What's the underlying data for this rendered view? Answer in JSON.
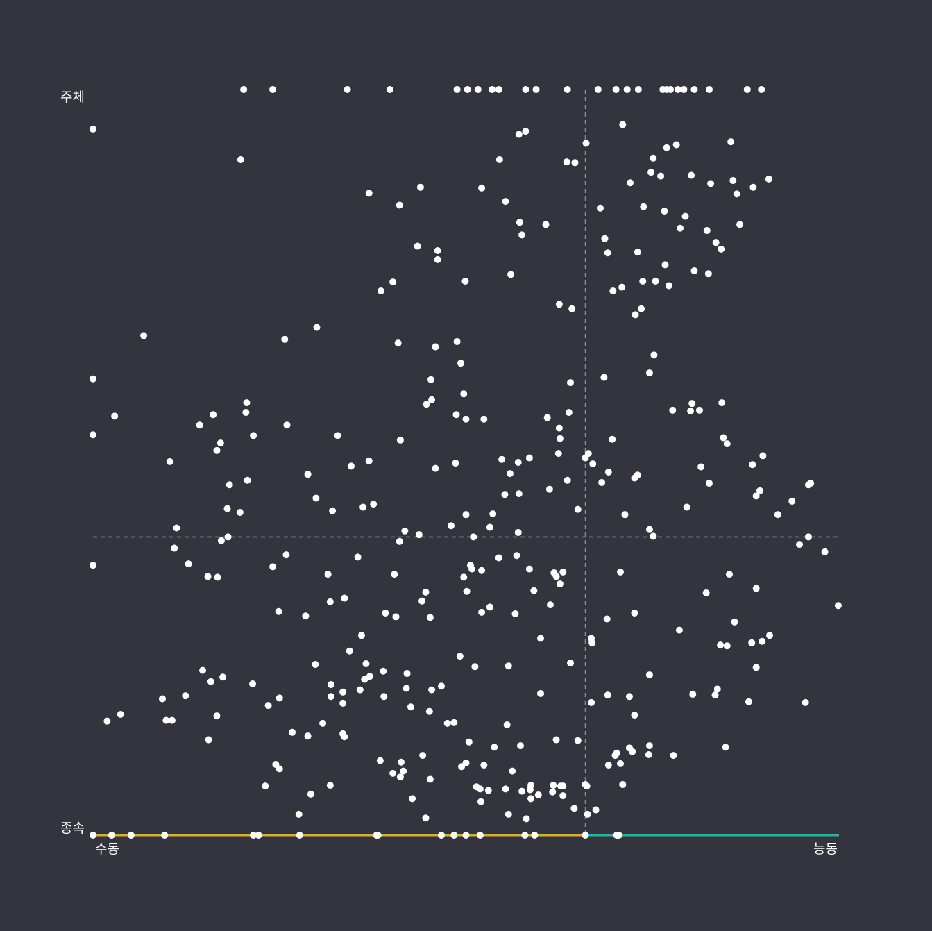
{
  "chart_data": {
    "type": "scatter",
    "title": "",
    "labels": {
      "y_top": "주체",
      "y_bottom": "종속",
      "x_left": "수동",
      "x_right": "능동"
    },
    "x_range": [
      0,
      1
    ],
    "y_range": [
      0,
      1
    ],
    "reference_lines": {
      "x": 0.66,
      "y": 0.4
    },
    "grid": false,
    "legend": "none",
    "colors": {
      "background": "#34343f",
      "point": "#ffffff",
      "reference_line": "#8a8a96",
      "y_axis_top": "#d6731e",
      "y_axis_bottom": "#5a59b5",
      "x_axis_left": "#d8ad35",
      "x_axis_right": "#2ab3a2"
    },
    "points": [
      [
        0.202,
        1.0
      ],
      [
        0.241,
        1.0
      ],
      [
        0.341,
        1.0
      ],
      [
        0.398,
        1.0
      ],
      [
        0.488,
        1.0
      ],
      [
        0.502,
        1.0
      ],
      [
        0.516,
        1.0
      ],
      [
        0.535,
        1.0
      ],
      [
        0.544,
        1.0
      ],
      [
        0.58,
        1.0
      ],
      [
        0.594,
        1.0
      ],
      [
        0.636,
        1.0
      ],
      [
        0.677,
        1.0
      ],
      [
        0.701,
        1.0
      ],
      [
        0.716,
        1.0
      ],
      [
        0.731,
        1.0
      ],
      [
        0.764,
        1.0
      ],
      [
        0.769,
        1.0
      ],
      [
        0.774,
        1.0
      ],
      [
        0.784,
        1.0
      ],
      [
        0.792,
        1.0
      ],
      [
        0.806,
        1.0
      ],
      [
        0.826,
        1.0
      ],
      [
        0.877,
        1.0
      ],
      [
        0.896,
        1.0
      ],
      [
        0.0,
        0.947
      ],
      [
        0.71,
        0.953
      ],
      [
        0.571,
        0.94
      ],
      [
        0.58,
        0.944
      ],
      [
        0.661,
        0.928
      ],
      [
        0.769,
        0.922
      ],
      [
        0.782,
        0.926
      ],
      [
        0.855,
        0.93
      ],
      [
        0.198,
        0.906
      ],
      [
        0.545,
        0.906
      ],
      [
        0.635,
        0.903
      ],
      [
        0.751,
        0.908
      ],
      [
        0.72,
        0.875
      ],
      [
        0.646,
        0.902
      ],
      [
        0.863,
        0.86
      ],
      [
        0.885,
        0.869
      ],
      [
        0.858,
        0.878
      ],
      [
        0.828,
        0.874
      ],
      [
        0.37,
        0.861
      ],
      [
        0.439,
        0.869
      ],
      [
        0.521,
        0.868
      ],
      [
        0.553,
        0.85
      ],
      [
        0.572,
        0.822
      ],
      [
        0.575,
        0.805
      ],
      [
        0.607,
        0.819
      ],
      [
        0.68,
        0.841
      ],
      [
        0.686,
        0.8
      ],
      [
        0.748,
        0.889
      ],
      [
        0.802,
        0.885
      ],
      [
        0.867,
        0.819
      ],
      [
        0.906,
        0.88
      ],
      [
        0.761,
        0.884
      ],
      [
        0.738,
        0.843
      ],
      [
        0.794,
        0.83
      ],
      [
        0.823,
        0.811
      ],
      [
        0.835,
        0.795
      ],
      [
        0.842,
        0.786
      ],
      [
        0.787,
        0.814
      ],
      [
        0.806,
        0.757
      ],
      [
        0.825,
        0.753
      ],
      [
        0.767,
        0.765
      ],
      [
        0.754,
        0.743
      ],
      [
        0.737,
        0.743
      ],
      [
        0.766,
        0.837
      ],
      [
        0.73,
        0.782
      ],
      [
        0.772,
        0.737
      ],
      [
        0.69,
        0.781
      ],
      [
        0.709,
        0.735
      ],
      [
        0.697,
        0.73
      ],
      [
        0.735,
        0.706
      ],
      [
        0.685,
        0.614
      ],
      [
        0.642,
        0.706
      ],
      [
        0.625,
        0.712
      ],
      [
        0.727,
        0.698
      ],
      [
        0.752,
        0.644
      ],
      [
        0.746,
        0.62
      ],
      [
        0.801,
        0.569
      ],
      [
        0.803,
        0.579
      ],
      [
        0.843,
        0.58
      ],
      [
        0.845,
        0.533
      ],
      [
        0.0,
        0.612
      ],
      [
        0.0,
        0.537
      ],
      [
        0.161,
        0.564
      ],
      [
        0.206,
        0.58
      ],
      [
        0.257,
        0.665
      ],
      [
        0.068,
        0.67
      ],
      [
        0.029,
        0.562
      ],
      [
        0.103,
        0.501
      ],
      [
        0.3,
        0.681
      ],
      [
        0.409,
        0.66
      ],
      [
        0.453,
        0.611
      ],
      [
        0.488,
        0.662
      ],
      [
        0.487,
        0.564
      ],
      [
        0.56,
        0.752
      ],
      [
        0.64,
        0.607
      ],
      [
        0.638,
        0.567
      ],
      [
        0.609,
        0.56
      ],
      [
        0.57,
        0.5
      ],
      [
        0.585,
        0.506
      ],
      [
        0.486,
        0.499
      ],
      [
        0.454,
        0.584
      ],
      [
        0.402,
        0.742
      ],
      [
        0.386,
        0.73
      ],
      [
        0.435,
        0.79
      ],
      [
        0.462,
        0.772
      ],
      [
        0.462,
        0.784
      ],
      [
        0.411,
        0.845
      ],
      [
        0.499,
        0.743
      ],
      [
        0.459,
        0.655
      ],
      [
        0.412,
        0.53
      ],
      [
        0.447,
        0.578
      ],
      [
        0.5,
        0.558
      ],
      [
        0.524,
        0.558
      ],
      [
        0.493,
        0.633
      ],
      [
        0.497,
        0.592
      ],
      [
        0.459,
        0.492
      ],
      [
        0.552,
        0.457
      ],
      [
        0.548,
        0.504
      ],
      [
        0.636,
        0.476
      ],
      [
        0.696,
        0.531
      ],
      [
        0.66,
        0.506
      ],
      [
        0.67,
        0.498
      ],
      [
        0.664,
        0.512
      ],
      [
        0.624,
        0.512
      ],
      [
        0.682,
        0.473
      ],
      [
        0.612,
        0.464
      ],
      [
        0.625,
        0.546
      ],
      [
        0.691,
        0.487
      ],
      [
        0.726,
        0.479
      ],
      [
        0.73,
        0.483
      ],
      [
        0.813,
        0.57
      ],
      [
        0.85,
        0.525
      ],
      [
        0.826,
        0.472
      ],
      [
        0.884,
        0.497
      ],
      [
        0.898,
        0.509
      ],
      [
        0.918,
        0.43
      ],
      [
        0.889,
        0.455
      ],
      [
        0.815,
        0.494
      ],
      [
        0.777,
        0.57
      ],
      [
        0.713,
        0.43
      ],
      [
        0.796,
        0.44
      ],
      [
        0.751,
        0.401
      ],
      [
        0.65,
        0.437
      ],
      [
        0.626,
        0.532
      ],
      [
        0.532,
        0.413
      ],
      [
        0.5,
        0.43
      ],
      [
        0.51,
        0.4
      ],
      [
        0.411,
        0.394
      ],
      [
        0.418,
        0.408
      ],
      [
        0.362,
        0.44
      ],
      [
        0.328,
        0.536
      ],
      [
        0.215,
        0.536
      ],
      [
        0.205,
        0.567
      ],
      [
        0.166,
        0.516
      ],
      [
        0.143,
        0.55
      ],
      [
        0.207,
        0.476
      ],
      [
        0.18,
        0.438
      ],
      [
        0.183,
        0.47
      ],
      [
        0.197,
        0.433
      ],
      [
        0.171,
        0.526
      ],
      [
        0.26,
        0.55
      ],
      [
        0.288,
        0.484
      ],
      [
        0.299,
        0.452
      ],
      [
        0.321,
        0.435
      ],
      [
        0.346,
        0.495
      ],
      [
        0.37,
        0.502
      ],
      [
        0.376,
        0.444
      ],
      [
        0.437,
        0.403
      ],
      [
        0.48,
        0.415
      ],
      [
        0.508,
        0.357
      ],
      [
        0.521,
        0.355
      ],
      [
        0.536,
        0.431
      ],
      [
        0.559,
        0.485
      ],
      [
        0.571,
        0.458
      ],
      [
        0.568,
        0.375
      ],
      [
        0.63,
        0.353
      ],
      [
        0.585,
        0.357
      ],
      [
        0.621,
        0.347
      ],
      [
        0.591,
        0.328
      ],
      [
        0.532,
        0.306
      ],
      [
        0.544,
        0.372
      ],
      [
        0.57,
        0.406
      ],
      [
        0.521,
        0.299
      ],
      [
        0.566,
        0.297
      ],
      [
        0.6,
        0.264
      ],
      [
        0.613,
        0.309
      ],
      [
        0.618,
        0.352
      ],
      [
        0.626,
        0.337
      ],
      [
        0.668,
        0.264
      ],
      [
        0.707,
        0.353
      ],
      [
        0.726,
        0.298
      ],
      [
        0.746,
        0.41
      ],
      [
        0.822,
        0.325
      ],
      [
        0.853,
        0.35
      ],
      [
        0.85,
        0.254
      ],
      [
        0.889,
        0.331
      ],
      [
        0.897,
        0.26
      ],
      [
        0.837,
        0.196
      ],
      [
        0.981,
        0.38
      ],
      [
        0.947,
        0.39
      ],
      [
        0.999,
        0.308
      ],
      [
        0.894,
        0.462
      ],
      [
        0.937,
        0.448
      ],
      [
        0.959,
        0.4
      ],
      [
        0.962,
        0.472
      ],
      [
        0.959,
        0.47
      ],
      [
        0.112,
        0.412
      ],
      [
        0.172,
        0.395
      ],
      [
        0.109,
        0.385
      ],
      [
        0.154,
        0.347
      ],
      [
        0.167,
        0.346
      ],
      [
        0.128,
        0.364
      ],
      [
        0.181,
        0.4
      ],
      [
        0.241,
        0.36
      ],
      [
        0.259,
        0.376
      ],
      [
        0.249,
        0.3
      ],
      [
        0.285,
        0.294
      ],
      [
        0.315,
        0.35
      ],
      [
        0.337,
        0.318
      ],
      [
        0.355,
        0.373
      ],
      [
        0.392,
        0.298
      ],
      [
        0.404,
        0.35
      ],
      [
        0.406,
        0.293
      ],
      [
        0.441,
        0.314
      ],
      [
        0.452,
        0.292
      ],
      [
        0.446,
        0.326
      ],
      [
        0.36,
        0.268
      ],
      [
        0.366,
        0.23
      ],
      [
        0.389,
        0.22
      ],
      [
        0.421,
        0.217
      ],
      [
        0.42,
        0.197
      ],
      [
        0.426,
        0.172
      ],
      [
        0.451,
        0.166
      ],
      [
        0.467,
        0.2
      ],
      [
        0.497,
        0.346
      ],
      [
        0.501,
        0.327
      ],
      [
        0.506,
        0.362
      ],
      [
        0.557,
        0.227
      ],
      [
        0.555,
        0.148
      ],
      [
        0.512,
        0.226
      ],
      [
        0.492,
        0.24
      ],
      [
        0.475,
        0.15
      ],
      [
        0.484,
        0.151
      ],
      [
        0.416,
        0.086
      ],
      [
        0.413,
        0.098
      ],
      [
        0.385,
        0.1
      ],
      [
        0.454,
        0.195
      ],
      [
        0.39,
        0.186
      ],
      [
        0.538,
        0.118
      ],
      [
        0.573,
        0.12
      ],
      [
        0.6,
        0.19
      ],
      [
        0.621,
        0.128
      ],
      [
        0.65,
        0.127
      ],
      [
        0.64,
        0.231
      ],
      [
        0.669,
        0.258
      ],
      [
        0.726,
        0.161
      ],
      [
        0.746,
        0.215
      ],
      [
        0.689,
        0.29
      ],
      [
        0.786,
        0.275
      ],
      [
        0.883,
        0.258
      ],
      [
        0.955,
        0.178
      ],
      [
        0.907,
        0.268
      ],
      [
        0.879,
        0.179
      ],
      [
        0.848,
        0.118
      ],
      [
        0.834,
        0.188
      ],
      [
        0.804,
        0.189
      ],
      [
        0.841,
        0.255
      ],
      [
        0.86,
        0.286
      ],
      [
        0.889,
        0.225
      ],
      [
        0.746,
        0.12
      ],
      [
        0.778,
        0.107
      ],
      [
        0.745,
        0.108
      ],
      [
        0.707,
        0.096
      ],
      [
        0.7,
        0.107
      ],
      [
        0.663,
        0.028
      ],
      [
        0.627,
        0.066
      ],
      [
        0.719,
        0.117
      ],
      [
        0.63,
        0.053
      ],
      [
        0.524,
        0.094
      ],
      [
        0.519,
        0.062
      ],
      [
        0.5,
        0.097
      ],
      [
        0.494,
        0.092
      ],
      [
        0.504,
        0.125
      ],
      [
        0.452,
        0.075
      ],
      [
        0.442,
        0.107
      ],
      [
        0.412,
        0.078
      ],
      [
        0.358,
        0.195
      ],
      [
        0.364,
        0.209
      ],
      [
        0.371,
        0.213
      ],
      [
        0.344,
        0.247
      ],
      [
        0.318,
        0.313
      ],
      [
        0.319,
        0.202
      ],
      [
        0.308,
        0.15
      ],
      [
        0.288,
        0.133
      ],
      [
        0.235,
        0.174
      ],
      [
        0.25,
        0.184
      ],
      [
        0.214,
        0.203
      ],
      [
        0.174,
        0.212
      ],
      [
        0.166,
        0.16
      ],
      [
        0.158,
        0.206
      ],
      [
        0.147,
        0.221
      ],
      [
        0.155,
        0.128
      ],
      [
        0.124,
        0.187
      ],
      [
        0.098,
        0.154
      ],
      [
        0.106,
        0.154
      ],
      [
        0.093,
        0.183
      ],
      [
        0.037,
        0.162
      ],
      [
        0.0,
        0.362
      ],
      [
        0.019,
        0.153
      ],
      [
        0.267,
        0.138
      ],
      [
        0.335,
        0.136
      ],
      [
        0.298,
        0.229
      ],
      [
        0.319,
        0.186
      ],
      [
        0.335,
        0.192
      ],
      [
        0.335,
        0.177
      ],
      [
        0.231,
        0.066
      ],
      [
        0.292,
        0.055
      ],
      [
        0.245,
        0.095
      ],
      [
        0.25,
        0.089
      ],
      [
        0.276,
        0.028
      ],
      [
        0.318,
        0.067
      ],
      [
        0.337,
        0.132
      ],
      [
        0.402,
        0.083
      ],
      [
        0.428,
        0.049
      ],
      [
        0.446,
        0.023
      ],
      [
        0.514,
        0.065
      ],
      [
        0.562,
        0.086
      ],
      [
        0.52,
        0.045
      ],
      [
        0.53,
        0.06
      ],
      [
        0.587,
        0.067
      ],
      [
        0.586,
        0.061
      ],
      [
        0.674,
        0.034
      ],
      [
        0.702,
        0.11
      ],
      [
        0.691,
        0.094
      ],
      [
        0.668,
        0.178
      ],
      [
        0.71,
        0.068
      ],
      [
        0.723,
        0.112
      ],
      [
        0.69,
        0.188
      ],
      [
        0.719,
        0.186
      ],
      [
        0.63,
        0.066
      ],
      [
        0.645,
        0.036
      ],
      [
        0.587,
        0.049
      ],
      [
        0.557,
        0.028
      ],
      [
        0.575,
        0.059
      ],
      [
        0.66,
        0.068
      ],
      [
        0.662,
        0.066
      ],
      [
        0.597,
        0.054
      ],
      [
        0.581,
        0.022
      ],
      [
        0.553,
        0.062
      ],
      [
        0.616,
        0.058
      ],
      [
        0.617,
        0.067
      ],
      [
        0.0,
        0.0
      ],
      [
        0.025,
        0.0
      ],
      [
        0.051,
        0.0
      ],
      [
        0.096,
        0.0
      ],
      [
        0.215,
        0.0
      ],
      [
        0.222,
        0.0
      ],
      [
        0.277,
        0.0
      ],
      [
        0.38,
        0.0
      ],
      [
        0.382,
        0.0
      ],
      [
        0.467,
        0.0
      ],
      [
        0.484,
        0.0
      ],
      [
        0.5,
        0.0
      ],
      [
        0.519,
        0.0
      ],
      [
        0.579,
        0.0
      ],
      [
        0.592,
        0.0
      ],
      [
        0.66,
        0.0
      ],
      [
        0.702,
        0.0
      ],
      [
        0.705,
        0.0
      ]
    ]
  }
}
